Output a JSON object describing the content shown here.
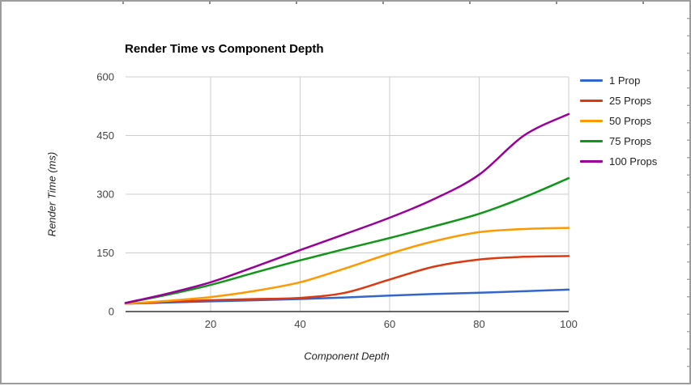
{
  "window": {
    "border_color": "#9c9c9c",
    "background": "#ffffff"
  },
  "colors": {
    "grid": "#cccccc",
    "axis": "#333333",
    "tick_label": "#444444",
    "title_text": "#000000",
    "axis_title_text": "#222222",
    "legend_text": "#222222"
  },
  "chart_data": {
    "type": "line",
    "title": "Render Time vs Component Depth",
    "xlabel": "Component Depth",
    "ylabel": "Render Time (ms)",
    "xlim": [
      1,
      100
    ],
    "ylim": [
      0,
      600
    ],
    "x_ticks": [
      20,
      40,
      60,
      80,
      100
    ],
    "y_ticks": [
      0,
      150,
      300,
      450,
      600
    ],
    "grid": true,
    "legend_position": "right",
    "x": [
      1,
      10,
      20,
      30,
      40,
      50,
      60,
      70,
      80,
      90,
      100
    ],
    "series": [
      {
        "name": "1 Prop",
        "color": "#3366CC",
        "values": [
          20,
          23,
          26,
          29,
          32,
          36,
          41,
          45,
          48,
          52,
          56
        ]
      },
      {
        "name": "25 Props",
        "color": "#DC3912",
        "values": [
          20,
          25,
          29,
          32,
          35,
          48,
          82,
          115,
          133,
          140,
          142
        ]
      },
      {
        "name": "50 Props",
        "color": "#FF9900",
        "values": [
          20,
          27,
          37,
          53,
          75,
          110,
          148,
          180,
          203,
          211,
          214
        ]
      },
      {
        "name": "75 Props",
        "color": "#109618",
        "values": [
          22,
          42,
          68,
          100,
          131,
          160,
          188,
          218,
          250,
          292,
          341
        ]
      },
      {
        "name": "100 Props",
        "color": "#990099",
        "values": [
          22,
          45,
          75,
          115,
          157,
          198,
          240,
          288,
          350,
          450,
          505
        ]
      }
    ]
  }
}
